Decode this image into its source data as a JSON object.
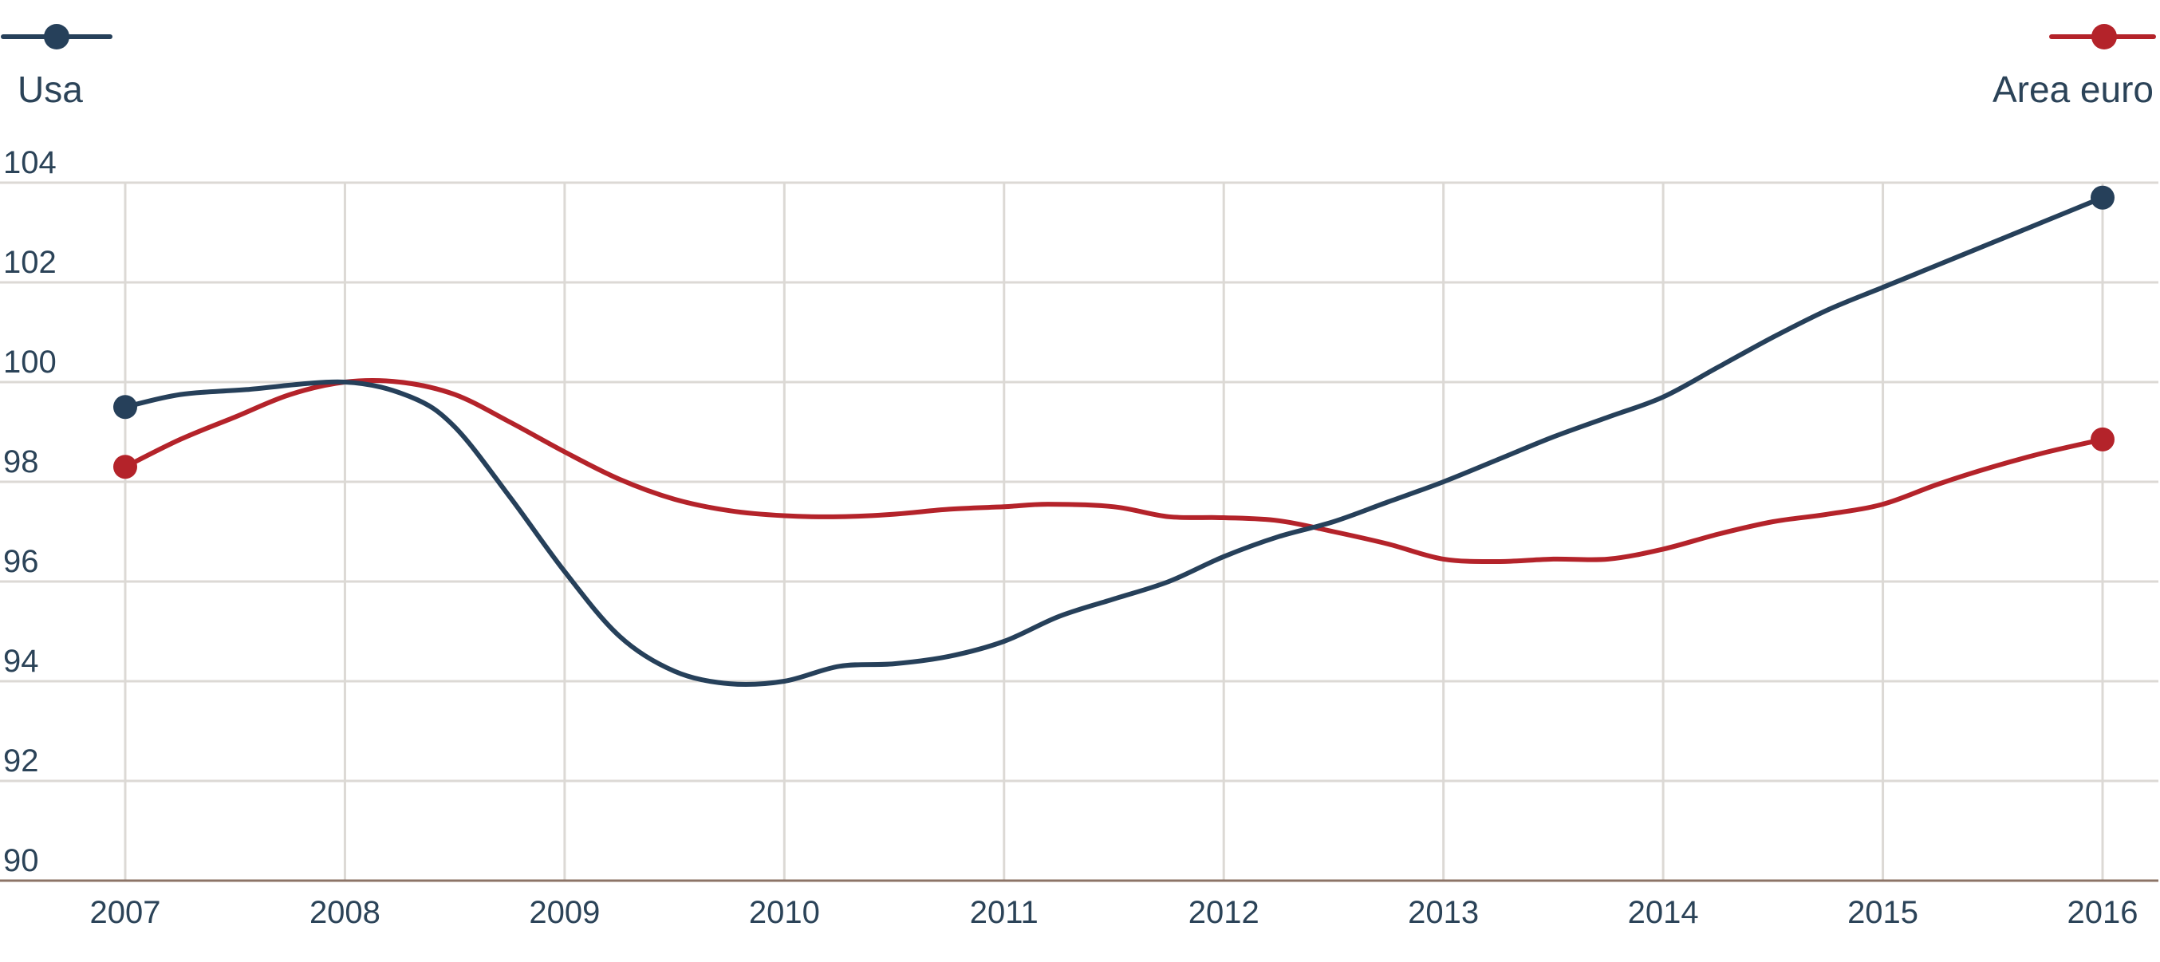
{
  "chart_data": {
    "type": "line",
    "title": "",
    "xlabel": "",
    "ylabel": "",
    "x": [
      "2007",
      "2008",
      "2009",
      "2010",
      "2011",
      "2012",
      "2013",
      "2014",
      "2015",
      "2016"
    ],
    "ylim": [
      90,
      104
    ],
    "yticks": [
      "90",
      "92",
      "94",
      "96",
      "98",
      "100",
      "102",
      "104"
    ],
    "grid": true,
    "legend_placement": "top, split left and right",
    "series": [
      {
        "name": "Usa",
        "color": "#26405a",
        "points": [
          [
            2007.0,
            99.5
          ],
          [
            2007.25,
            99.75
          ],
          [
            2007.55,
            99.85
          ],
          [
            2008.0,
            100.0
          ],
          [
            2008.3,
            99.7
          ],
          [
            2008.5,
            99.1
          ],
          [
            2008.75,
            97.7
          ],
          [
            2009.0,
            96.2
          ],
          [
            2009.25,
            94.9
          ],
          [
            2009.5,
            94.2
          ],
          [
            2009.75,
            93.95
          ],
          [
            2010.0,
            94.0
          ],
          [
            2010.25,
            94.3
          ],
          [
            2010.5,
            94.35
          ],
          [
            2010.75,
            94.5
          ],
          [
            2011.0,
            94.8
          ],
          [
            2011.25,
            95.3
          ],
          [
            2011.5,
            95.65
          ],
          [
            2011.75,
            96.0
          ],
          [
            2012.0,
            96.5
          ],
          [
            2012.25,
            96.9
          ],
          [
            2012.5,
            97.2
          ],
          [
            2012.75,
            97.6
          ],
          [
            2013.0,
            98.0
          ],
          [
            2013.25,
            98.45
          ],
          [
            2013.5,
            98.9
          ],
          [
            2013.75,
            99.3
          ],
          [
            2014.0,
            99.7
          ],
          [
            2014.25,
            100.3
          ],
          [
            2014.5,
            100.9
          ],
          [
            2014.75,
            101.45
          ],
          [
            2015.0,
            101.9
          ],
          [
            2015.25,
            102.35
          ],
          [
            2015.5,
            102.8
          ],
          [
            2015.75,
            103.25
          ],
          [
            2016.0,
            103.7
          ]
        ]
      },
      {
        "name": "Area euro",
        "color": "#b4232a",
        "points": [
          [
            2007.0,
            98.3
          ],
          [
            2007.25,
            98.85
          ],
          [
            2007.5,
            99.3
          ],
          [
            2007.75,
            99.75
          ],
          [
            2008.0,
            100.0
          ],
          [
            2008.25,
            100.0
          ],
          [
            2008.5,
            99.75
          ],
          [
            2008.75,
            99.2
          ],
          [
            2009.0,
            98.6
          ],
          [
            2009.25,
            98.05
          ],
          [
            2009.5,
            97.65
          ],
          [
            2009.75,
            97.42
          ],
          [
            2010.0,
            97.32
          ],
          [
            2010.25,
            97.3
          ],
          [
            2010.5,
            97.35
          ],
          [
            2010.75,
            97.45
          ],
          [
            2011.0,
            97.5
          ],
          [
            2011.2,
            97.55
          ],
          [
            2011.5,
            97.5
          ],
          [
            2011.75,
            97.3
          ],
          [
            2012.0,
            97.28
          ],
          [
            2012.25,
            97.22
          ],
          [
            2012.5,
            97.0
          ],
          [
            2012.75,
            96.75
          ],
          [
            2013.0,
            96.45
          ],
          [
            2013.25,
            96.4
          ],
          [
            2013.5,
            96.45
          ],
          [
            2013.75,
            96.45
          ],
          [
            2014.0,
            96.65
          ],
          [
            2014.25,
            96.95
          ],
          [
            2014.5,
            97.2
          ],
          [
            2014.75,
            97.35
          ],
          [
            2015.0,
            97.55
          ],
          [
            2015.25,
            97.95
          ],
          [
            2015.5,
            98.3
          ],
          [
            2015.75,
            98.6
          ],
          [
            2016.0,
            98.85
          ]
        ]
      }
    ]
  }
}
